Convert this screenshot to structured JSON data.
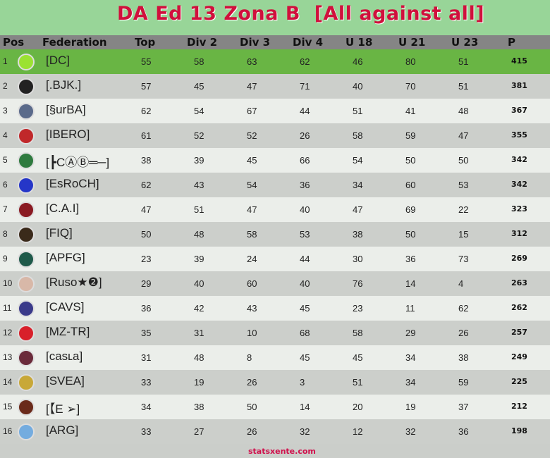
{
  "title": "DA Ed 13 Zona B  [All against all]",
  "columns": [
    "Pos",
    "Federation",
    "Top",
    "Div 2",
    "Div 3",
    "Div 4",
    "U 18",
    "U 21",
    "U 23",
    "P"
  ],
  "rows": [
    {
      "pos": "1",
      "fed": "[DC]",
      "logo": "#9be232",
      "vals": [
        "55",
        "58",
        "63",
        "62",
        "46",
        "80",
        "51"
      ],
      "p": "415"
    },
    {
      "pos": "2",
      "fed": "[.BJK.]",
      "logo": "#222222",
      "vals": [
        "57",
        "45",
        "47",
        "71",
        "40",
        "70",
        "51"
      ],
      "p": "381"
    },
    {
      "pos": "3",
      "fed": "[§urBA]",
      "logo": "#5a6a8a",
      "vals": [
        "62",
        "54",
        "67",
        "44",
        "51",
        "41",
        "48"
      ],
      "p": "367"
    },
    {
      "pos": "4",
      "fed": "[IBERO]",
      "logo": "#c0282a",
      "vals": [
        "61",
        "52",
        "52",
        "26",
        "58",
        "59",
        "47"
      ],
      "p": "355"
    },
    {
      "pos": "5",
      "fed": "[┣CⒶⒷ═─]",
      "logo": "#2e7a3e",
      "vals": [
        "38",
        "39",
        "45",
        "66",
        "54",
        "50",
        "50"
      ],
      "p": "342"
    },
    {
      "pos": "6",
      "fed": "[EsRoCH]",
      "logo": "#2536c8",
      "vals": [
        "62",
        "43",
        "54",
        "36",
        "34",
        "60",
        "53"
      ],
      "p": "342"
    },
    {
      "pos": "7",
      "fed": "[C.A.I]",
      "logo": "#8a1a22",
      "vals": [
        "47",
        "51",
        "47",
        "40",
        "47",
        "69",
        "22"
      ],
      "p": "323"
    },
    {
      "pos": "8",
      "fed": "[FIQ]",
      "logo": "#3a2a1a",
      "vals": [
        "50",
        "48",
        "58",
        "53",
        "38",
        "50",
        "15"
      ],
      "p": "312"
    },
    {
      "pos": "9",
      "fed": "[APFG]",
      "logo": "#1f5a4a",
      "vals": [
        "23",
        "39",
        "24",
        "44",
        "30",
        "36",
        "73"
      ],
      "p": "269"
    },
    {
      "pos": "10",
      "fed": "[Ruso★❷]",
      "logo": "#d8b8a8",
      "vals": [
        "29",
        "40",
        "60",
        "40",
        "76",
        "14",
        "4"
      ],
      "p": "263"
    },
    {
      "pos": "11",
      "fed": "[CAVS]",
      "logo": "#3a3a8a",
      "vals": [
        "36",
        "42",
        "43",
        "45",
        "23",
        "11",
        "62"
      ],
      "p": "262"
    },
    {
      "pos": "12",
      "fed": "[MZ-TR]",
      "logo": "#d8202a",
      "vals": [
        "35",
        "31",
        "10",
        "68",
        "58",
        "29",
        "26"
      ],
      "p": "257"
    },
    {
      "pos": "13",
      "fed": "[casʟa]",
      "logo": "#6a2a3a",
      "vals": [
        "31",
        "48",
        "8",
        "45",
        "45",
        "34",
        "38"
      ],
      "p": "249"
    },
    {
      "pos": "14",
      "fed": "[SVEA]",
      "logo": "#c8a838",
      "vals": [
        "33",
        "19",
        "26",
        "3",
        "51",
        "34",
        "59"
      ],
      "p": "225"
    },
    {
      "pos": "15",
      "fed": "[【E ➢]",
      "logo": "#6a2a1a",
      "vals": [
        "34",
        "38",
        "50",
        "14",
        "20",
        "19",
        "37"
      ],
      "p": "212"
    },
    {
      "pos": "16",
      "fed": "[ARG]",
      "logo": "#74acdf",
      "vals": [
        "33",
        "27",
        "26",
        "32",
        "12",
        "32",
        "36"
      ],
      "p": "198"
    }
  ],
  "footer": "statsxente.com"
}
